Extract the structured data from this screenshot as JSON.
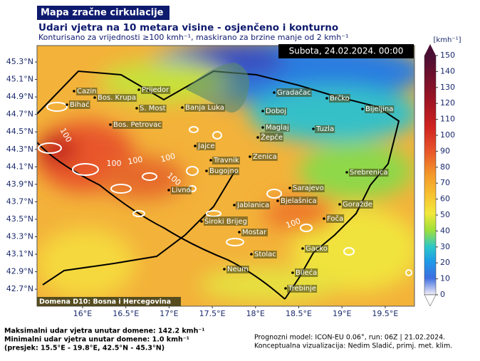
{
  "header": {
    "title": "Mapa zračne cirkulacije",
    "subtitle": "Udari vjetra na 10 metara visine - osjenčeno i konturno",
    "note": "Konturisano za vrijednosti ≥100 kmh⁻¹, maskirano za brzine manje od 2 kmh⁻¹"
  },
  "map": {
    "date": "Subota, 24.02.2024. 00:00",
    "domain": "Domena D10: Bosna i Hercegovina",
    "lat_ticks": [
      "45.3°N",
      "45.1°N",
      "44.9°N",
      "44.7°N",
      "44.5°N",
      "44.3°N",
      "44.1°N",
      "43.9°N",
      "43.7°N",
      "43.5°N",
      "43.3°N",
      "43.1°N",
      "42.9°N",
      "42.7°N"
    ],
    "lon_ticks": [
      "16°E",
      "16.5°E",
      "17°E",
      "17.5°E",
      "18°E",
      "18.5°E",
      "19°E",
      "19.5°E"
    ],
    "cities": [
      "Cazin",
      "Bos. Krupa",
      "Prijedor",
      "Bihać",
      "S. Most",
      "Banja Luka",
      "Bos. Petrovac",
      "Gradačac",
      "Brčko",
      "Doboj",
      "Bijeljina",
      "Maglaj",
      "Tuzla",
      "Žepče",
      "Jajce",
      "Zenica",
      "Travnik",
      "Bugojno",
      "Srebrenica",
      "Livno",
      "Sarajevo",
      "Jablanica",
      "Bjelašnica",
      "Goražde",
      "Široki Brijeg",
      "Foča",
      "Mostar",
      "Gacko",
      "Stolac",
      "Neum",
      "Bileća",
      "Trebinje"
    ],
    "contour_labels": [
      "100",
      "100",
      "100",
      "100",
      "100",
      "100"
    ]
  },
  "colorbar": {
    "unit": "[kmh⁻¹]",
    "ticks": [
      0,
      10,
      20,
      30,
      40,
      50,
      60,
      70,
      80,
      90,
      100,
      110,
      120,
      130,
      140,
      150
    ],
    "lim": [
      0,
      150
    ]
  },
  "footer": {
    "left": [
      "Maksimalni udar vjetra unutar domene: 142.2 kmh⁻¹",
      "Minimalni udar vjetra unutar domene: 1.0 kmh⁻¹",
      "(presjek: 15.5°E - 19.8°E, 42.5°N - 45.3°N)"
    ],
    "right": [
      "Prognozni model: ICON-EU 0.06°, run: 06Z | 21.02.2024.",
      "Konceptualna vizualizacija: Nedim Sladić, primj. met. klim."
    ]
  }
}
